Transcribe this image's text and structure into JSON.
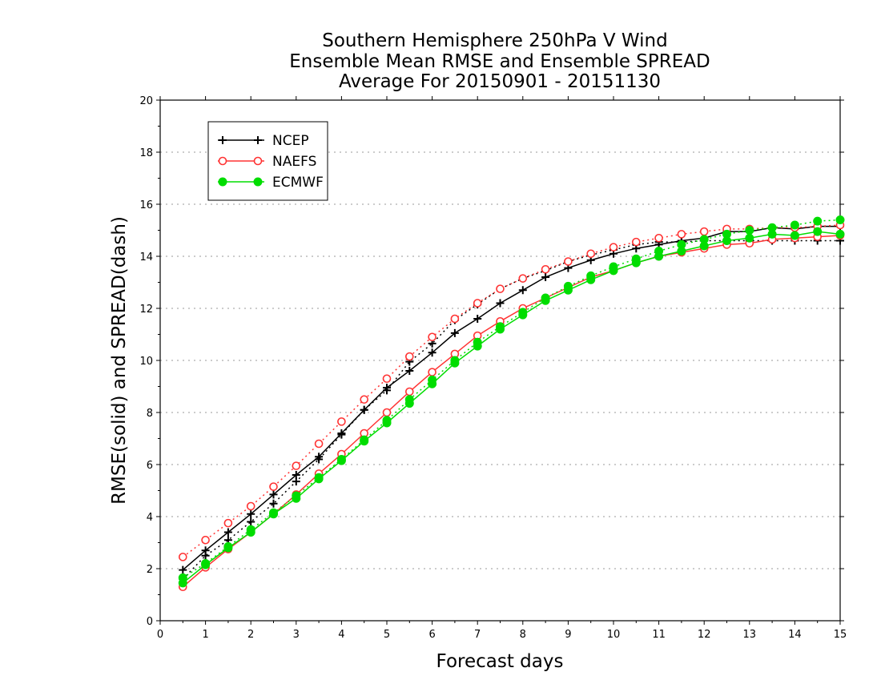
{
  "chart_data": {
    "type": "line",
    "title": [
      "Southern Hemisphere 250hPa V Wind",
      "Ensemble Mean RMSE and Ensemble SPREAD",
      "Average For 20150901 - 20151130"
    ],
    "xlabel": "Forecast days",
    "ylabel": "RMSE(solid) and SPREAD(dash)",
    "xlim": [
      0,
      15
    ],
    "ylim": [
      0,
      20
    ],
    "xticks": [
      0,
      1,
      2,
      3,
      4,
      5,
      6,
      7,
      8,
      9,
      10,
      11,
      12,
      13,
      14,
      15
    ],
    "yticks": [
      0,
      2,
      4,
      6,
      8,
      10,
      12,
      14,
      16,
      18,
      20
    ],
    "grid": "horizontal dotted",
    "legend_position": "top-left",
    "x": [
      0.5,
      1,
      1.5,
      2,
      2.5,
      3,
      3.5,
      4,
      4.5,
      5,
      5.5,
      6,
      6.5,
      7,
      7.5,
      8,
      8.5,
      9,
      9.5,
      10,
      10.5,
      11,
      11.5,
      12,
      12.5,
      13,
      13.5,
      14,
      14.5,
      15
    ],
    "series": [
      {
        "name": "NCEP",
        "color": "#000000",
        "marker": "plus",
        "rmse": [
          1.95,
          2.7,
          3.4,
          4.1,
          4.85,
          5.6,
          6.3,
          7.2,
          8.1,
          8.95,
          9.6,
          10.3,
          11.05,
          11.6,
          12.2,
          12.7,
          13.2,
          13.55,
          13.85,
          14.1,
          14.3,
          14.45,
          14.6,
          14.7,
          14.95,
          14.95,
          15.1,
          15.05,
          15.15,
          15.15
        ],
        "spread": [
          1.6,
          2.5,
          3.1,
          3.8,
          4.5,
          5.35,
          6.2,
          7.15,
          8.1,
          8.85,
          9.95,
          10.65,
          11.55,
          12.15,
          12.75,
          13.15,
          13.45,
          13.8,
          14.05,
          14.25,
          14.45,
          14.55,
          14.55,
          14.6,
          14.6,
          14.6,
          14.6,
          14.6,
          14.6,
          14.6
        ]
      },
      {
        "name": "NAEFS",
        "color": "#ff3333",
        "marker": "open-circle",
        "rmse": [
          1.3,
          2.05,
          2.75,
          3.4,
          4.1,
          4.85,
          5.65,
          6.4,
          7.2,
          8.0,
          8.8,
          9.55,
          10.25,
          10.95,
          11.5,
          12.0,
          12.4,
          12.8,
          13.2,
          13.45,
          13.75,
          14.0,
          14.15,
          14.3,
          14.45,
          14.5,
          14.65,
          14.7,
          14.75,
          14.8
        ],
        "spread": [
          2.45,
          3.1,
          3.75,
          4.4,
          5.15,
          5.95,
          6.8,
          7.65,
          8.5,
          9.3,
          10.15,
          10.9,
          11.6,
          12.2,
          12.75,
          13.15,
          13.5,
          13.8,
          14.1,
          14.35,
          14.55,
          14.7,
          14.85,
          14.95,
          15.05,
          15.05,
          15.1,
          15.1,
          15.15,
          15.2
        ]
      },
      {
        "name": "ECMWF",
        "color": "#00dd00",
        "marker": "filled-circle",
        "rmse": [
          1.45,
          2.15,
          2.8,
          3.4,
          4.1,
          4.7,
          5.45,
          6.15,
          6.9,
          7.6,
          8.35,
          9.1,
          9.9,
          10.55,
          11.2,
          11.75,
          12.3,
          12.7,
          13.1,
          13.45,
          13.75,
          14.0,
          14.2,
          14.4,
          14.6,
          14.7,
          14.85,
          14.8,
          14.95,
          14.85
        ],
        "spread": [
          1.65,
          2.2,
          2.85,
          3.5,
          4.15,
          4.8,
          5.5,
          6.2,
          6.95,
          7.7,
          8.5,
          9.25,
          10.0,
          10.7,
          11.3,
          11.85,
          12.4,
          12.85,
          13.25,
          13.6,
          13.9,
          14.2,
          14.45,
          14.65,
          14.85,
          15.0,
          15.1,
          15.2,
          15.35,
          15.4
        ]
      }
    ]
  }
}
